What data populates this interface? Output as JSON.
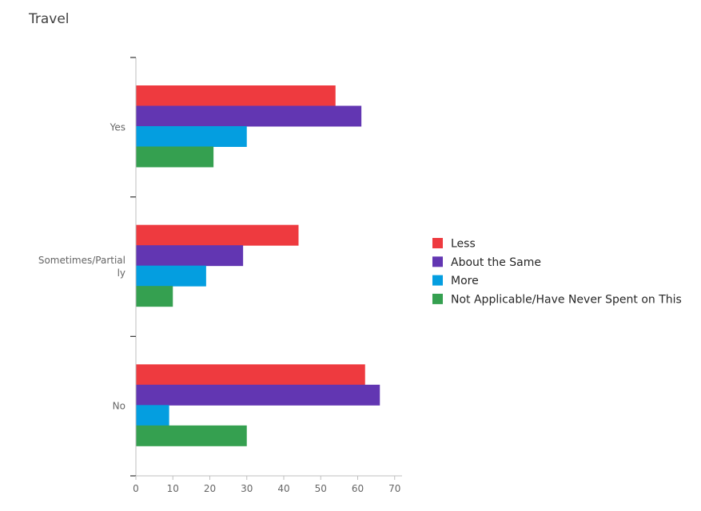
{
  "page": {
    "title": "Travel"
  },
  "chart_data": {
    "type": "bar",
    "orientation": "horizontal",
    "title": "Travel",
    "categories": [
      "Yes",
      "Sometimes/Partially",
      "No"
    ],
    "category_label_lines": [
      [
        "Yes"
      ],
      [
        "Sometimes/Partial",
        "ly"
      ],
      [
        "No"
      ]
    ],
    "series": [
      {
        "name": "Less",
        "color": "#ee3a3f",
        "values": [
          54,
          44,
          62
        ]
      },
      {
        "name": "About the Same",
        "color": "#6236b2",
        "values": [
          61,
          29,
          66
        ]
      },
      {
        "name": "More",
        "color": "#049ee0",
        "values": [
          30,
          19,
          9
        ]
      },
      {
        "name": "Not Applicable/Have Never Spent on This",
        "color": "#35a050",
        "values": [
          21,
          10,
          30
        ]
      }
    ],
    "xlim": [
      0,
      72
    ],
    "xticks": [
      0,
      10,
      20,
      30,
      40,
      50,
      60,
      70
    ],
    "xlabel": "",
    "ylabel": "",
    "grid": false,
    "legend_position": "right"
  }
}
